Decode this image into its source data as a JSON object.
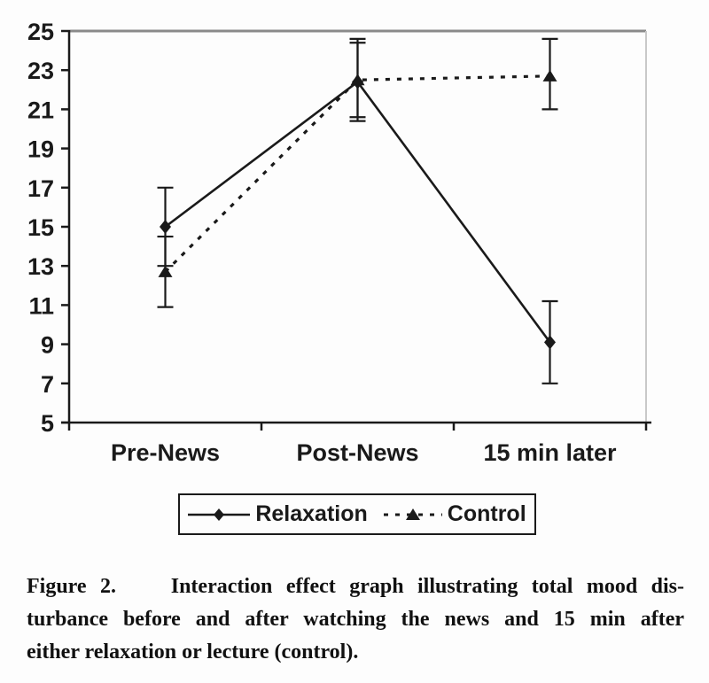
{
  "chart_data": {
    "type": "line",
    "categories": [
      "Pre-News",
      "Post-News",
      "15 min later"
    ],
    "series": [
      {
        "name": "Relaxation",
        "marker": "diamond",
        "line_style": "solid",
        "values": [
          15.0,
          22.4,
          9.1
        ],
        "error_low": [
          13.0,
          20.4,
          7.0
        ],
        "error_high": [
          17.0,
          24.4,
          11.2
        ]
      },
      {
        "name": "Control",
        "marker": "triangle",
        "line_style": "dashed",
        "values": [
          12.7,
          22.5,
          22.7
        ],
        "error_low": [
          10.9,
          20.6,
          21.0
        ],
        "error_high": [
          14.5,
          24.6,
          24.6
        ]
      }
    ],
    "title": "",
    "xlabel": "",
    "ylabel": "",
    "ylim": [
      5,
      25
    ],
    "yticks": [
      25,
      23,
      21,
      19,
      17,
      15,
      13,
      11,
      9,
      7,
      5
    ],
    "grid": false,
    "legend_position": "bottom-box",
    "error_bars": true,
    "colors": {
      "line": "#1a1a1a",
      "plot_top_border": "#8a8a8a",
      "plot_right_border": "#c9c9c9",
      "background": "#fdfdfd"
    }
  },
  "figure": {
    "caption": {
      "lines": [
        "Figure 2.    Interaction effect graph illustrating total mood dis-",
        "turbance before and after watching the news and 15 min after",
        "either relaxation or lecture (control)."
      ]
    }
  }
}
